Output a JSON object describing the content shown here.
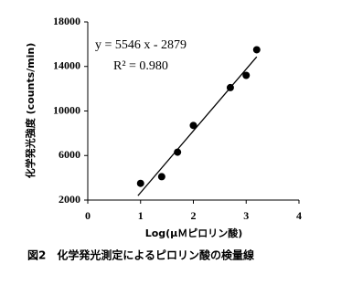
{
  "chart_data": {
    "type": "scatter",
    "x": [
      1.0,
      1.4,
      1.7,
      2.0,
      2.7,
      3.0,
      3.2
    ],
    "values": [
      3500,
      4100,
      6300,
      8700,
      12100,
      13200,
      15500
    ],
    "color": "#000000",
    "xlim": [
      0,
      4
    ],
    "xticks": [
      0,
      1,
      2,
      3,
      4
    ],
    "ylim": [
      2000,
      18000
    ],
    "yticks": [
      2000,
      6000,
      10000,
      14000,
      18000
    ],
    "x_label": "Log(μＭピロリン酸)",
    "y_label": "化学発光強度 (counts/min)",
    "trendline": {
      "slope": 5546,
      "intercept": -2879
    },
    "equation": "y = 5546 x - 2879",
    "r_squared": "R² = 0.980",
    "caption": "図2　化学発光測定によるピロリン酸の検量線"
  }
}
